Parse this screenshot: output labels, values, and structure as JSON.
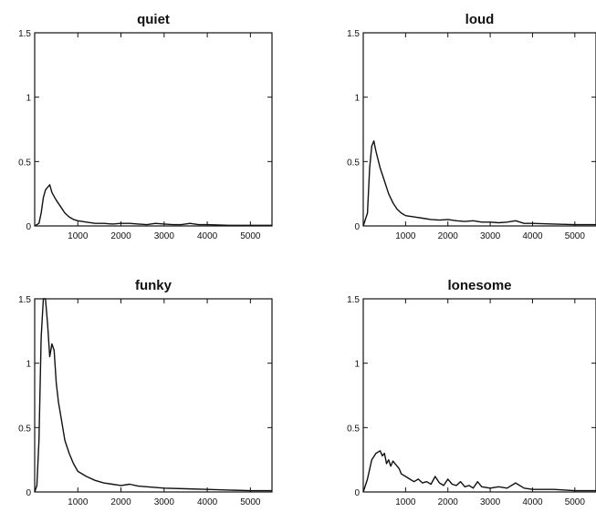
{
  "chart_data": [
    {
      "type": "line",
      "title": "quiet",
      "xlabel": "",
      "ylabel": "",
      "xlim": [
        0,
        5500
      ],
      "ylim": [
        0,
        1.5
      ],
      "xticks": [
        1000,
        2000,
        3000,
        4000,
        5000
      ],
      "xtick_labels": [
        "1000",
        "2000",
        "3000",
        "4000",
        "5000"
      ],
      "yticks": [
        0,
        0.5,
        1,
        1.5
      ],
      "ytick_labels": [
        "0",
        "0.5",
        "1",
        "1.5"
      ],
      "grid": false,
      "x": [
        0,
        100,
        150,
        200,
        250,
        300,
        350,
        400,
        500,
        600,
        700,
        800,
        900,
        1000,
        1200,
        1400,
        1600,
        1800,
        2000,
        2200,
        2400,
        2600,
        2800,
        3000,
        3200,
        3400,
        3600,
        3800,
        4000,
        4500,
        5000,
        5500
      ],
      "y": [
        0,
        0.02,
        0.1,
        0.22,
        0.28,
        0.3,
        0.32,
        0.26,
        0.2,
        0.15,
        0.1,
        0.07,
        0.05,
        0.04,
        0.03,
        0.02,
        0.02,
        0.015,
        0.02,
        0.02,
        0.015,
        0.01,
        0.02,
        0.015,
        0.01,
        0.01,
        0.02,
        0.01,
        0.01,
        0.005,
        0.005,
        0.005
      ]
    },
    {
      "type": "line",
      "title": "loud",
      "xlabel": "",
      "ylabel": "",
      "xlim": [
        0,
        5500
      ],
      "ylim": [
        0,
        1.5
      ],
      "xticks": [
        1000,
        2000,
        3000,
        4000,
        5000
      ],
      "xtick_labels": [
        "1000",
        "2000",
        "3000",
        "4000",
        "5000"
      ],
      "yticks": [
        0,
        0.5,
        1,
        1.5
      ],
      "ytick_labels": [
        "0",
        "0.5",
        "1",
        "1.5"
      ],
      "grid": false,
      "x": [
        0,
        100,
        150,
        200,
        250,
        300,
        400,
        500,
        600,
        700,
        800,
        900,
        1000,
        1200,
        1400,
        1600,
        1800,
        2000,
        2200,
        2400,
        2600,
        2800,
        3000,
        3200,
        3400,
        3600,
        3800,
        4000,
        4500,
        5000,
        5500
      ],
      "y": [
        0,
        0.1,
        0.45,
        0.62,
        0.66,
        0.58,
        0.45,
        0.35,
        0.25,
        0.18,
        0.13,
        0.1,
        0.08,
        0.07,
        0.06,
        0.05,
        0.045,
        0.05,
        0.04,
        0.035,
        0.04,
        0.03,
        0.03,
        0.025,
        0.03,
        0.04,
        0.02,
        0.02,
        0.015,
        0.01,
        0.01
      ]
    },
    {
      "type": "line",
      "title": "funky",
      "xlabel": "",
      "ylabel": "",
      "xlim": [
        0,
        5500
      ],
      "ylim": [
        0,
        1.5
      ],
      "xticks": [
        1000,
        2000,
        3000,
        4000,
        5000
      ],
      "xtick_labels": [
        "1000",
        "2000",
        "3000",
        "4000",
        "5000"
      ],
      "yticks": [
        0,
        0.5,
        1,
        1.5
      ],
      "ytick_labels": [
        "0",
        "0.5",
        "1",
        "1.5"
      ],
      "grid": false,
      "x": [
        0,
        50,
        100,
        150,
        200,
        250,
        300,
        350,
        400,
        450,
        500,
        550,
        600,
        700,
        800,
        900,
        1000,
        1200,
        1400,
        1600,
        1800,
        2000,
        2200,
        2400,
        2600,
        2800,
        3000,
        3500,
        4000,
        4500,
        5000,
        5500
      ],
      "y": [
        0,
        0.05,
        0.4,
        1.2,
        1.5,
        1.5,
        1.3,
        1.05,
        1.15,
        1.1,
        0.85,
        0.7,
        0.6,
        0.4,
        0.3,
        0.22,
        0.16,
        0.12,
        0.09,
        0.07,
        0.06,
        0.05,
        0.06,
        0.045,
        0.04,
        0.035,
        0.03,
        0.025,
        0.02,
        0.015,
        0.01,
        0.01
      ]
    },
    {
      "type": "line",
      "title": "lonesome",
      "xlabel": "",
      "ylabel": "",
      "xlim": [
        0,
        5500
      ],
      "ylim": [
        0,
        1.5
      ],
      "xticks": [
        1000,
        2000,
        3000,
        4000,
        5000
      ],
      "xtick_labels": [
        "1000",
        "2000",
        "3000",
        "4000",
        "5000"
      ],
      "yticks": [
        0,
        0.5,
        1,
        1.5
      ],
      "ytick_labels": [
        "0",
        "0.5",
        "1",
        "1.5"
      ],
      "grid": false,
      "x": [
        0,
        100,
        200,
        300,
        400,
        450,
        500,
        550,
        600,
        650,
        700,
        750,
        800,
        850,
        900,
        1000,
        1100,
        1200,
        1300,
        1400,
        1500,
        1600,
        1700,
        1800,
        1900,
        2000,
        2100,
        2200,
        2300,
        2400,
        2500,
        2600,
        2700,
        2800,
        3000,
        3200,
        3400,
        3600,
        3800,
        4000,
        4500,
        5000,
        5500
      ],
      "y": [
        0,
        0.1,
        0.25,
        0.3,
        0.32,
        0.28,
        0.3,
        0.22,
        0.25,
        0.2,
        0.24,
        0.22,
        0.2,
        0.18,
        0.14,
        0.12,
        0.1,
        0.08,
        0.1,
        0.07,
        0.08,
        0.06,
        0.12,
        0.07,
        0.05,
        0.1,
        0.06,
        0.05,
        0.08,
        0.04,
        0.05,
        0.03,
        0.08,
        0.04,
        0.03,
        0.04,
        0.03,
        0.07,
        0.03,
        0.02,
        0.02,
        0.01,
        0.01
      ]
    }
  ]
}
